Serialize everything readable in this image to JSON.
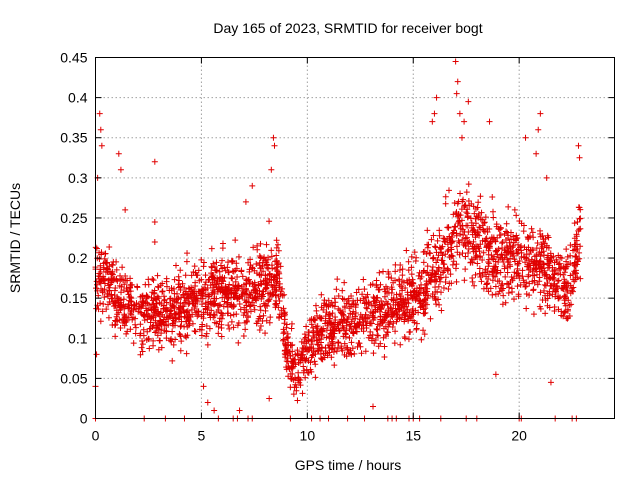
{
  "chart_data": {
    "type": "scatter",
    "title": "Day 165 of 2023, SRMTID for receiver bogt",
    "xlabel": "GPS time / hours",
    "ylabel": "SRMTID / TECUs",
    "xlim": [
      0,
      24.5
    ],
    "ylim": [
      0,
      0.45
    ],
    "x_ticks": [
      0,
      5,
      10,
      15,
      20
    ],
    "x_tick_labels": [
      "0",
      "5",
      "10",
      "15",
      "20"
    ],
    "y_ticks": [
      0,
      0.05,
      0.1,
      0.15,
      0.2,
      0.25,
      0.3,
      0.35,
      0.4,
      0.45
    ],
    "y_tick_labels": [
      "0",
      "0.05",
      "0.1",
      "0.15",
      "0.2",
      "0.25",
      "0.3",
      "0.35",
      "0.4",
      "0.45"
    ],
    "grid": true,
    "marker": "plus",
    "color": "#e00000",
    "series": [
      {
        "name": "SRMTID",
        "trend_x": [
          0,
          0.5,
          1,
          1.5,
          2,
          3,
          4,
          5,
          6,
          7,
          8,
          8.6,
          9,
          9.3,
          9.6,
          10,
          10.5,
          11,
          12,
          13,
          14,
          15,
          15.5,
          16,
          16.5,
          17,
          17.5,
          18,
          19,
          20,
          21,
          21.5,
          22,
          22.5,
          22.9
        ],
        "trend_y": [
          0.19,
          0.17,
          0.15,
          0.14,
          0.13,
          0.13,
          0.135,
          0.15,
          0.16,
          0.15,
          0.17,
          0.18,
          0.1,
          0.07,
          0.06,
          0.09,
          0.1,
          0.11,
          0.12,
          0.13,
          0.14,
          0.15,
          0.16,
          0.18,
          0.2,
          0.23,
          0.24,
          0.22,
          0.2,
          0.2,
          0.19,
          0.18,
          0.17,
          0.16,
          0.25
        ],
        "spread": 0.045,
        "n_points": 2600,
        "x_range": [
          0,
          22.9
        ]
      }
    ],
    "peaks": [
      {
        "x": 0.2,
        "y": 0.38
      },
      {
        "x": 0.25,
        "y": 0.36
      },
      {
        "x": 0.3,
        "y": 0.34
      },
      {
        "x": 0.1,
        "y": 0.3
      },
      {
        "x": 1.1,
        "y": 0.33
      },
      {
        "x": 1.2,
        "y": 0.31
      },
      {
        "x": 1.4,
        "y": 0.26
      },
      {
        "x": 2.8,
        "y": 0.32
      },
      {
        "x": 2.8,
        "y": 0.245
      },
      {
        "x": 2.8,
        "y": 0.22
      },
      {
        "x": 7.4,
        "y": 0.29
      },
      {
        "x": 7.1,
        "y": 0.27
      },
      {
        "x": 8.4,
        "y": 0.35
      },
      {
        "x": 8.45,
        "y": 0.34
      },
      {
        "x": 8.3,
        "y": 0.31
      },
      {
        "x": 17.0,
        "y": 0.445
      },
      {
        "x": 17.1,
        "y": 0.42
      },
      {
        "x": 17.05,
        "y": 0.405
      },
      {
        "x": 17.2,
        "y": 0.38
      },
      {
        "x": 16.1,
        "y": 0.4
      },
      {
        "x": 16.0,
        "y": 0.38
      },
      {
        "x": 15.9,
        "y": 0.37
      },
      {
        "x": 17.6,
        "y": 0.395
      },
      {
        "x": 17.4,
        "y": 0.37
      },
      {
        "x": 18.6,
        "y": 0.37
      },
      {
        "x": 20.3,
        "y": 0.35
      },
      {
        "x": 21.0,
        "y": 0.38
      },
      {
        "x": 20.9,
        "y": 0.36
      },
      {
        "x": 20.8,
        "y": 0.33
      },
      {
        "x": 22.8,
        "y": 0.34
      },
      {
        "x": 22.85,
        "y": 0.325
      },
      {
        "x": 21.3,
        "y": 0.3
      },
      {
        "x": 17.3,
        "y": 0.35
      }
    ],
    "lows": [
      {
        "x": 0.0,
        "y": 0.0
      },
      {
        "x": 0.05,
        "y": 0.08
      },
      {
        "x": 0.0,
        "y": 0.04
      },
      {
        "x": 2.3,
        "y": 0.0
      },
      {
        "x": 3.3,
        "y": 0.0
      },
      {
        "x": 4.2,
        "y": 0.0
      },
      {
        "x": 5.1,
        "y": 0.04
      },
      {
        "x": 5.3,
        "y": 0.02
      },
      {
        "x": 5.6,
        "y": 0.01
      },
      {
        "x": 5.8,
        "y": 0.0
      },
      {
        "x": 6.5,
        "y": 0.0
      },
      {
        "x": 6.7,
        "y": 0.0
      },
      {
        "x": 6.8,
        "y": 0.01
      },
      {
        "x": 7.2,
        "y": 0.0
      },
      {
        "x": 7.4,
        "y": 0.0
      },
      {
        "x": 8.2,
        "y": 0.025
      },
      {
        "x": 9.2,
        "y": 0.0
      },
      {
        "x": 10.2,
        "y": 0.0
      },
      {
        "x": 10.6,
        "y": 0.0
      },
      {
        "x": 11.0,
        "y": 0.0
      },
      {
        "x": 11.9,
        "y": 0.0
      },
      {
        "x": 12.7,
        "y": 0.0
      },
      {
        "x": 13.1,
        "y": 0.015
      },
      {
        "x": 13.8,
        "y": 0.0
      },
      {
        "x": 14.0,
        "y": 0.0
      },
      {
        "x": 14.2,
        "y": 0.0
      },
      {
        "x": 14.8,
        "y": 0.0
      },
      {
        "x": 15.0,
        "y": 0.0
      },
      {
        "x": 15.3,
        "y": 0.0
      },
      {
        "x": 16.3,
        "y": 0.0
      },
      {
        "x": 17.5,
        "y": 0.0
      },
      {
        "x": 18.0,
        "y": 0.0
      },
      {
        "x": 20.0,
        "y": 0.0
      },
      {
        "x": 20.1,
        "y": 0.0
      },
      {
        "x": 21.7,
        "y": 0.0
      },
      {
        "x": 22.5,
        "y": 0.0
      },
      {
        "x": 22.7,
        "y": 0.0
      },
      {
        "x": 18.9,
        "y": 0.055
      },
      {
        "x": 21.5,
        "y": 0.045
      }
    ]
  }
}
